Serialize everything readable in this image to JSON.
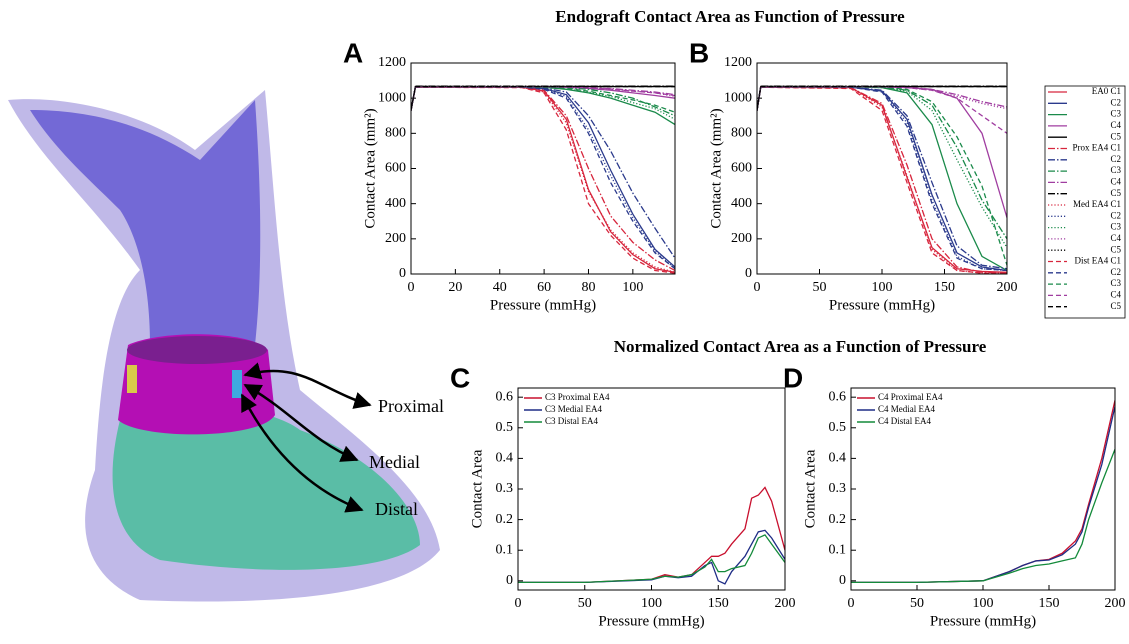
{
  "figure_titles": [
    "Endograft Contact Area as Function of Pressure",
    "Normalized Contact Area as a Function of Pressure"
  ],
  "illustration": {
    "labels": [
      "Proximal",
      "Medial",
      "Distal"
    ]
  },
  "chart_data": [
    {
      "type": "line",
      "panel": "A",
      "xlabel": "Pressure (mmHg)",
      "ylabel": "Contact Area (mm²)",
      "x": [
        0,
        2,
        50,
        60,
        70,
        80,
        90,
        100,
        110,
        119
      ],
      "xlim": [
        0,
        119
      ],
      "xticks": [
        0,
        20,
        40,
        60,
        80,
        100
      ],
      "ylim": [
        0,
        1200
      ],
      "yticks": [
        0,
        200,
        400,
        600,
        800,
        1000,
        1200
      ],
      "series": [
        {
          "color": "#d7263d",
          "dash": "solid",
          "values": [
            930,
            1062,
            1062,
            1040,
            880,
            480,
            240,
            110,
            30,
            10
          ]
        },
        {
          "color": "#2b3a8c",
          "dash": "solid",
          "values": [
            930,
            1063,
            1063,
            1055,
            1020,
            860,
            590,
            340,
            140,
            40
          ]
        },
        {
          "color": "#1a8a4a",
          "dash": "solid",
          "values": [
            930,
            1064,
            1064,
            1062,
            1050,
            1030,
            1000,
            960,
            920,
            850
          ]
        },
        {
          "color": "#a03da0",
          "dash": "solid",
          "values": [
            930,
            1065,
            1065,
            1065,
            1062,
            1055,
            1045,
            1030,
            1015,
            1000
          ]
        },
        {
          "color": "#000000",
          "dash": "solid",
          "values": [
            930,
            1066,
            1066,
            1066,
            1066,
            1066,
            1066,
            1066,
            1066,
            1066
          ]
        },
        {
          "color": "#d7263d",
          "dash": "dashdot",
          "values": [
            930,
            1063,
            1063,
            1045,
            900,
            600,
            330,
            180,
            80,
            20
          ]
        },
        {
          "color": "#2b3a8c",
          "dash": "dashdot",
          "values": [
            930,
            1064,
            1064,
            1058,
            1035,
            900,
            700,
            460,
            260,
            90
          ]
        },
        {
          "color": "#1a8a4a",
          "dash": "dashdot",
          "values": [
            930,
            1065,
            1065,
            1064,
            1060,
            1050,
            1030,
            1000,
            950,
            900
          ]
        },
        {
          "color": "#a03da0",
          "dash": "dashdot",
          "values": [
            930,
            1066,
            1066,
            1066,
            1064,
            1060,
            1055,
            1045,
            1035,
            1020
          ]
        },
        {
          "color": "#000000",
          "dash": "dashdot",
          "values": [
            930,
            1068,
            1068,
            1068,
            1068,
            1068,
            1068,
            1068,
            1068,
            1068
          ]
        },
        {
          "color": "#d7263d",
          "dash": "dotted",
          "values": [
            930,
            1062,
            1062,
            1035,
            860,
            470,
            250,
            120,
            40,
            10
          ]
        },
        {
          "color": "#2b3a8c",
          "dash": "dotted",
          "values": [
            930,
            1063,
            1063,
            1053,
            1010,
            820,
            560,
            320,
            130,
            30
          ]
        },
        {
          "color": "#1a8a4a",
          "dash": "dotted",
          "values": [
            930,
            1064,
            1064,
            1062,
            1052,
            1035,
            1010,
            975,
            940,
            880
          ]
        },
        {
          "color": "#a03da0",
          "dash": "dotted",
          "values": [
            930,
            1065,
            1065,
            1065,
            1063,
            1058,
            1050,
            1040,
            1030,
            1010
          ]
        },
        {
          "color": "#000000",
          "dash": "dotted",
          "values": [
            930,
            1067,
            1067,
            1067,
            1067,
            1067,
            1067,
            1067,
            1067,
            1067
          ]
        },
        {
          "color": "#d7263d",
          "dash": "dashed",
          "values": [
            930,
            1062,
            1060,
            1030,
            820,
            400,
            220,
            90,
            20,
            5
          ]
        },
        {
          "color": "#2b3a8c",
          "dash": "dashed",
          "values": [
            930,
            1063,
            1063,
            1050,
            1000,
            800,
            520,
            300,
            120,
            30
          ]
        },
        {
          "color": "#1a8a4a",
          "dash": "dashed",
          "values": [
            930,
            1064,
            1064,
            1062,
            1055,
            1040,
            1015,
            990,
            960,
            920
          ]
        },
        {
          "color": "#a03da0",
          "dash": "dashed",
          "values": [
            930,
            1065,
            1065,
            1065,
            1063,
            1058,
            1052,
            1040,
            1030,
            1015
          ]
        },
        {
          "color": "#000000",
          "dash": "dashed",
          "values": [
            930,
            1066,
            1066,
            1066,
            1066,
            1066,
            1066,
            1066,
            1066,
            1066
          ]
        }
      ]
    },
    {
      "type": "line",
      "panel": "B",
      "xlabel": "Pressure (mmHg)",
      "ylabel": "Contact Area (mm²)",
      "x": [
        0,
        3,
        75,
        100,
        120,
        140,
        160,
        180,
        200
      ],
      "xlim": [
        0,
        200
      ],
      "xticks": [
        0,
        50,
        100,
        150,
        200
      ],
      "ylim": [
        0,
        1200
      ],
      "yticks": [
        0,
        200,
        400,
        600,
        800,
        1000,
        1200
      ],
      "legend": "outside right",
      "series": [
        {
          "name": "EA0  C1",
          "color": "#d7263d",
          "dash": "solid",
          "values": [
            930,
            1062,
            1060,
            960,
            550,
            150,
            30,
            15,
            10
          ]
        },
        {
          "name": "C2",
          "color": "#2b3a8c",
          "dash": "solid",
          "values": [
            930,
            1063,
            1063,
            1040,
            880,
            450,
            120,
            40,
            20
          ]
        },
        {
          "name": "C3",
          "color": "#1a8a4a",
          "dash": "solid",
          "values": [
            930,
            1064,
            1064,
            1060,
            1030,
            850,
            400,
            100,
            20
          ]
        },
        {
          "name": "C4",
          "color": "#a03da0",
          "dash": "solid",
          "values": [
            930,
            1065,
            1065,
            1064,
            1060,
            1050,
            1000,
            800,
            320
          ]
        },
        {
          "name": "C5",
          "color": "#000000",
          "dash": "solid",
          "values": [
            930,
            1066,
            1066,
            1066,
            1066,
            1066,
            1066,
            1066,
            1066
          ]
        },
        {
          "name": "Prox EA4 C1",
          "color": "#d7263d",
          "dash": "dashdot",
          "values": [
            930,
            1062,
            1060,
            970,
            620,
            200,
            40,
            10,
            5
          ]
        },
        {
          "name": "C2",
          "color": "#2b3a8c",
          "dash": "dashdot",
          "values": [
            930,
            1063,
            1063,
            1045,
            900,
            520,
            160,
            50,
            30
          ]
        },
        {
          "name": "C3",
          "color": "#1a8a4a",
          "dash": "dashdot",
          "values": [
            930,
            1064,
            1064,
            1062,
            1045,
            960,
            720,
            420,
            200
          ]
        },
        {
          "name": "C4",
          "color": "#a03da0",
          "dash": "dashdot",
          "values": [
            930,
            1065,
            1065,
            1065,
            1062,
            1050,
            1020,
            980,
            950
          ]
        },
        {
          "name": "C5",
          "color": "#000000",
          "dash": "dashdot",
          "values": [
            930,
            1068,
            1068,
            1068,
            1068,
            1068,
            1068,
            1068,
            1068
          ]
        },
        {
          "name": "Med EA4 C1",
          "color": "#d7263d",
          "dash": "dotted",
          "values": [
            930,
            1062,
            1058,
            950,
            560,
            140,
            20,
            5,
            5
          ]
        },
        {
          "name": "C2",
          "color": "#2b3a8c",
          "dash": "dotted",
          "values": [
            930,
            1063,
            1063,
            1040,
            860,
            420,
            100,
            30,
            20
          ]
        },
        {
          "name": "C3",
          "color": "#1a8a4a",
          "dash": "dotted",
          "values": [
            930,
            1064,
            1064,
            1060,
            1040,
            930,
            650,
            380,
            150
          ]
        },
        {
          "name": "C4",
          "color": "#a03da0",
          "dash": "dotted",
          "values": [
            930,
            1065,
            1065,
            1065,
            1060,
            1045,
            1010,
            970,
            940
          ]
        },
        {
          "name": "C5",
          "color": "#000000",
          "dash": "dotted",
          "values": [
            930,
            1067,
            1067,
            1067,
            1067,
            1067,
            1067,
            1067,
            1067
          ]
        },
        {
          "name": "Dist EA4  C1",
          "color": "#d7263d",
          "dash": "dashed",
          "values": [
            930,
            1062,
            1055,
            930,
            520,
            120,
            20,
            5,
            5
          ]
        },
        {
          "name": "C2",
          "color": "#2b3a8c",
          "dash": "dashed",
          "values": [
            930,
            1063,
            1063,
            1035,
            840,
            400,
            90,
            30,
            20
          ]
        },
        {
          "name": "C3",
          "color": "#1a8a4a",
          "dash": "dashed",
          "values": [
            930,
            1064,
            1064,
            1062,
            1050,
            980,
            780,
            500,
            50
          ]
        },
        {
          "name": "C4",
          "color": "#a03da0",
          "dash": "dashed",
          "values": [
            930,
            1065,
            1065,
            1064,
            1060,
            1045,
            1000,
            900,
            800
          ]
        },
        {
          "name": "C5",
          "color": "#000000",
          "dash": "dashed",
          "values": [
            930,
            1066,
            1066,
            1066,
            1066,
            1066,
            1066,
            1066,
            1066
          ]
        }
      ]
    },
    {
      "type": "line",
      "panel": "C",
      "xlabel": "Pressure (mmHg)",
      "ylabel": "Contact Area",
      "x": [
        0,
        50,
        100,
        110,
        120,
        130,
        140,
        145,
        150,
        155,
        160,
        170,
        175,
        180,
        185,
        190,
        200
      ],
      "xlim": [
        0,
        200
      ],
      "xticks": [
        0,
        50,
        100,
        150,
        200
      ],
      "ylim": [
        -0.03,
        0.63
      ],
      "yticks": [
        0,
        0.1,
        0.2,
        0.3,
        0.4,
        0.5,
        0.6
      ],
      "legend": "upper left",
      "series": [
        {
          "name": "C3 Proximal EA4",
          "color": "#c8102e",
          "dash": "solid",
          "values": [
            -0.005,
            -0.005,
            0.005,
            0.02,
            0.012,
            0.02,
            0.06,
            0.08,
            0.08,
            0.09,
            0.12,
            0.17,
            0.27,
            0.28,
            0.305,
            0.26,
            0.1
          ]
        },
        {
          "name": "C3 Medial EA4",
          "color": "#1f2d86",
          "dash": "solid",
          "values": [
            -0.005,
            -0.005,
            0.003,
            0.015,
            0.01,
            0.015,
            0.05,
            0.06,
            0.0,
            -0.01,
            0.03,
            0.08,
            0.12,
            0.16,
            0.165,
            0.14,
            0.07
          ]
        },
        {
          "name": "C3 Distal EA4",
          "color": "#138a3a",
          "dash": "solid",
          "values": [
            -0.005,
            -0.005,
            0.005,
            0.015,
            0.012,
            0.02,
            0.045,
            0.07,
            0.03,
            0.03,
            0.04,
            0.05,
            0.09,
            0.14,
            0.15,
            0.12,
            0.06
          ]
        }
      ]
    },
    {
      "type": "line",
      "panel": "D",
      "xlabel": "Pressure (mmHg)",
      "ylabel": "Contact Area",
      "x": [
        0,
        50,
        100,
        120,
        130,
        140,
        150,
        160,
        170,
        175,
        180,
        190,
        200
      ],
      "xlim": [
        0,
        200
      ],
      "xticks": [
        0,
        50,
        100,
        150,
        200
      ],
      "ylim": [
        -0.03,
        0.63
      ],
      "yticks": [
        0,
        0.1,
        0.2,
        0.3,
        0.4,
        0.5,
        0.6
      ],
      "legend": "upper left",
      "series": [
        {
          "name": "C4 Proximal EA4",
          "color": "#c8102e",
          "dash": "solid",
          "values": [
            -0.005,
            -0.005,
            0.0,
            0.03,
            0.05,
            0.065,
            0.07,
            0.09,
            0.13,
            0.17,
            0.25,
            0.4,
            0.59
          ]
        },
        {
          "name": "C4 Medial EA4",
          "color": "#1f2d86",
          "dash": "solid",
          "values": [
            -0.005,
            -0.005,
            0.0,
            0.03,
            0.05,
            0.065,
            0.068,
            0.085,
            0.12,
            0.16,
            0.24,
            0.38,
            0.57
          ]
        },
        {
          "name": "C4 Distal EA4",
          "color": "#138a3a",
          "dash": "solid",
          "values": [
            -0.005,
            -0.005,
            0.0,
            0.025,
            0.04,
            0.05,
            0.055,
            0.065,
            0.075,
            0.12,
            0.2,
            0.32,
            0.43
          ]
        }
      ]
    }
  ]
}
